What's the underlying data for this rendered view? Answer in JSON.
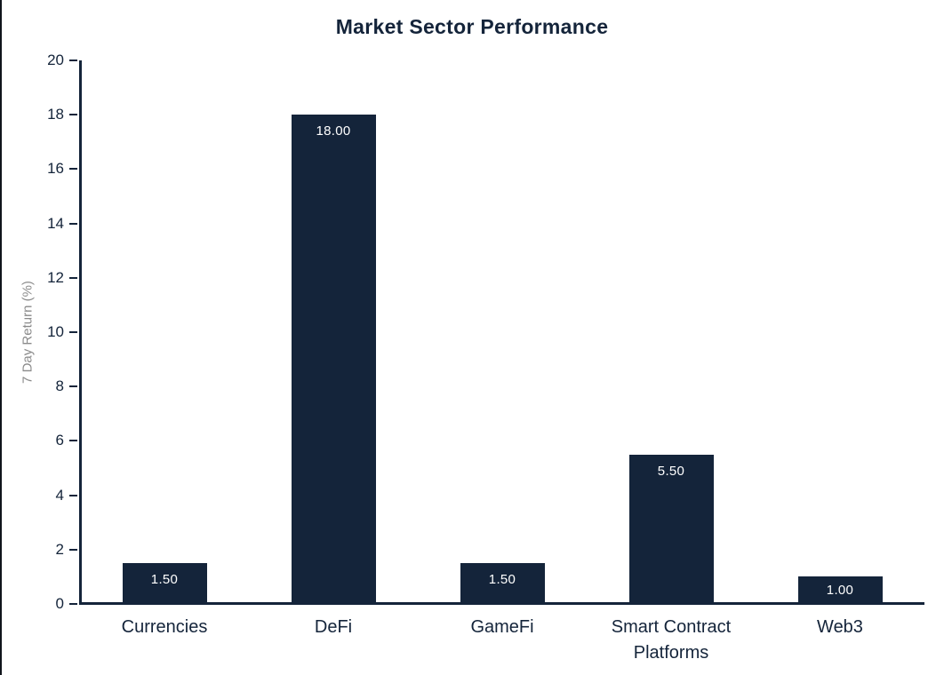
{
  "page": {
    "background": "#ffffff",
    "left_edge_color": "#10151c"
  },
  "chart": {
    "colors": {
      "bar": "#14243a",
      "text": "#14243a",
      "axis": "#14243a",
      "ylabel_gray": "#8a8a8a",
      "value_label": "#ffffff"
    }
  },
  "chart_data": {
    "type": "bar",
    "title": "Market Sector Performance",
    "xlabel": "",
    "ylabel": "7 Day Return (%)",
    "categories": [
      "Currencies",
      "DeFi",
      "GameFi",
      "Smart Contract Platforms",
      "Web3"
    ],
    "values": [
      1.5,
      18.0,
      1.5,
      5.5,
      1.0
    ],
    "value_labels": [
      "1.50",
      "18.00",
      "1.50",
      "5.50",
      "1.00"
    ],
    "ylim": [
      0,
      20
    ],
    "yticks": [
      0,
      2,
      4,
      6,
      8,
      10,
      12,
      14,
      16,
      18,
      20
    ],
    "grid": false,
    "legend": null,
    "bar_color": "#14243a",
    "value_label_position": "inside-top"
  }
}
